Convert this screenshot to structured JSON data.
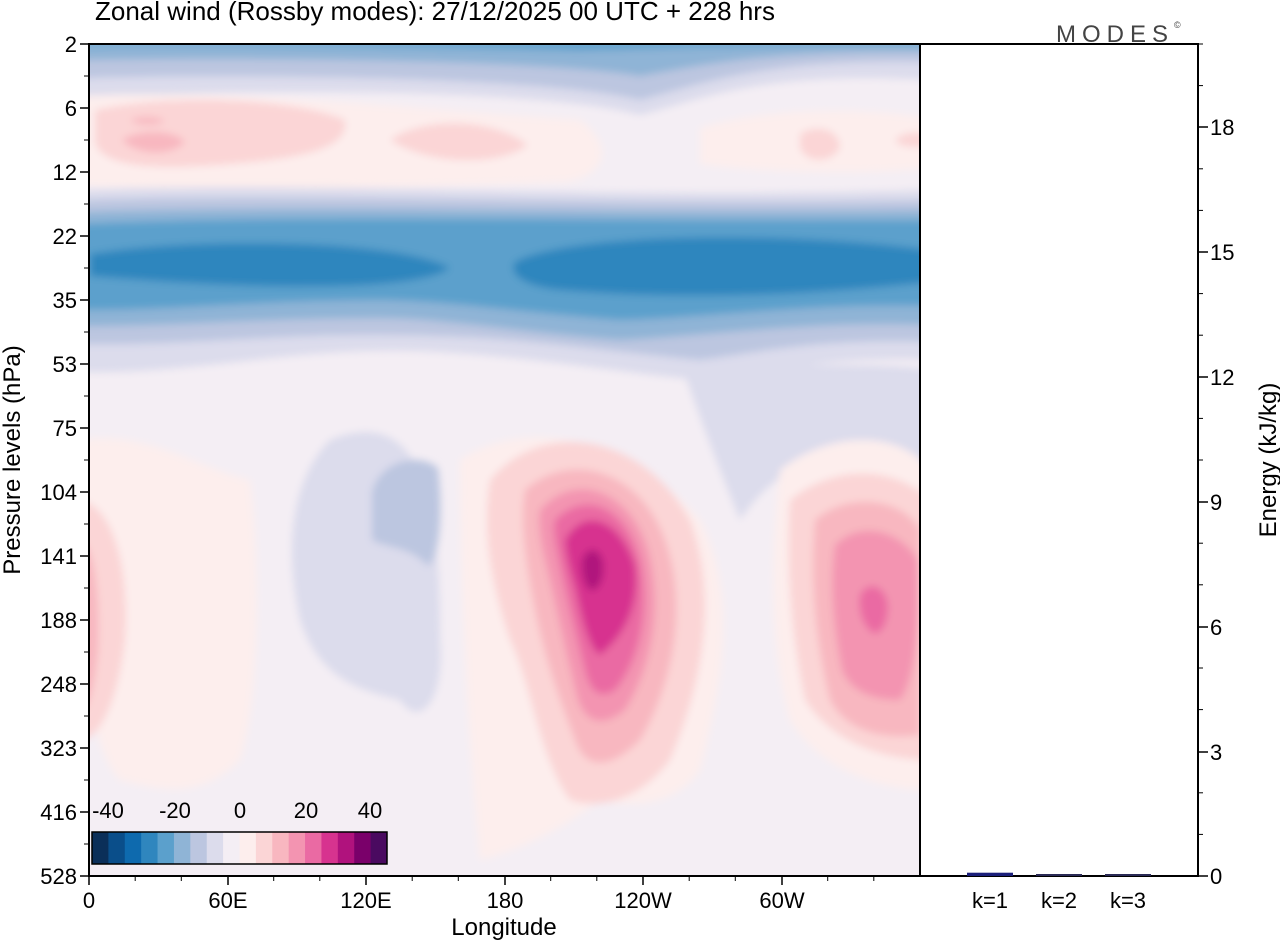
{
  "header": {
    "title": "Zonal wind (Rossby modes):  27/12/2025  00 UTC  + 228 hrs",
    "logo": "MODES",
    "logo_mark": "©"
  },
  "colors": {
    "scale": [
      "#0b2f59",
      "#0a4e8a",
      "#0e6aae",
      "#2f86be",
      "#5ba0cc",
      "#8fb4d6",
      "#bcc6e0",
      "#dcdcec",
      "#f4eef4",
      "#fdeeed",
      "#fbd5d6",
      "#f8b7c0",
      "#f394b1",
      "#ea6aa3",
      "#d7338f",
      "#b0127d",
      "#7a006a",
      "#4a0a60"
    ]
  },
  "chart_data": [
    {
      "type": "heatmap",
      "title": "Zonal wind (Rossby modes):  27/12/2025  00 UTC  + 228 hrs",
      "xlabel": "Longitude",
      "ylabel": "Pressure levels (hPa)",
      "x_ticks": [
        "0",
        "60E",
        "120E",
        "180",
        "120W",
        "60W"
      ],
      "y_ticks": [
        "2",
        "6",
        "12",
        "22",
        "35",
        "53",
        "75",
        "104",
        "141",
        "188",
        "248",
        "323",
        "416",
        "528"
      ],
      "colorbar": {
        "labels": [
          "-40",
          "-20",
          "0",
          "20",
          "40"
        ],
        "range": [
          -40,
          40
        ],
        "step": 5
      },
      "fields": [
        {
          "name": "upper-easterly-band",
          "lon": 0,
          "lon_end": 360,
          "level": "2",
          "value": -20
        },
        {
          "name": "upper-westerly-band",
          "lon": 0,
          "lon_end": 360,
          "level": "8",
          "value": 6
        },
        {
          "name": "easterly-jet-core-west",
          "lon": 0,
          "lon_end": 150,
          "level": "28",
          "value": -30
        },
        {
          "name": "easterly-jet-core-east",
          "lon": 185,
          "lon_end": 360,
          "level": "28",
          "value": -30
        },
        {
          "name": "trough-near-150E",
          "lon": 140,
          "level": "104",
          "value": -8
        },
        {
          "name": "westerly-max-near-150W",
          "lon": 218,
          "level": "141",
          "value": 35
        },
        {
          "name": "westerly-max-near-20W",
          "lon": 340,
          "level": "188",
          "value": 25
        },
        {
          "name": "westerly-weak-near-0",
          "lon": 0,
          "level": "188",
          "value": 10
        }
      ]
    },
    {
      "type": "bar",
      "categories": [
        "k=1",
        "k=2",
        "k=3"
      ],
      "values": [
        0.08,
        0.04,
        0.03
      ],
      "ylabel": "Energy (kJ/kg)",
      "y_ticks": [
        "0",
        "3",
        "6",
        "9",
        "12",
        "15",
        "18"
      ],
      "ylim": [
        0,
        20
      ]
    }
  ]
}
